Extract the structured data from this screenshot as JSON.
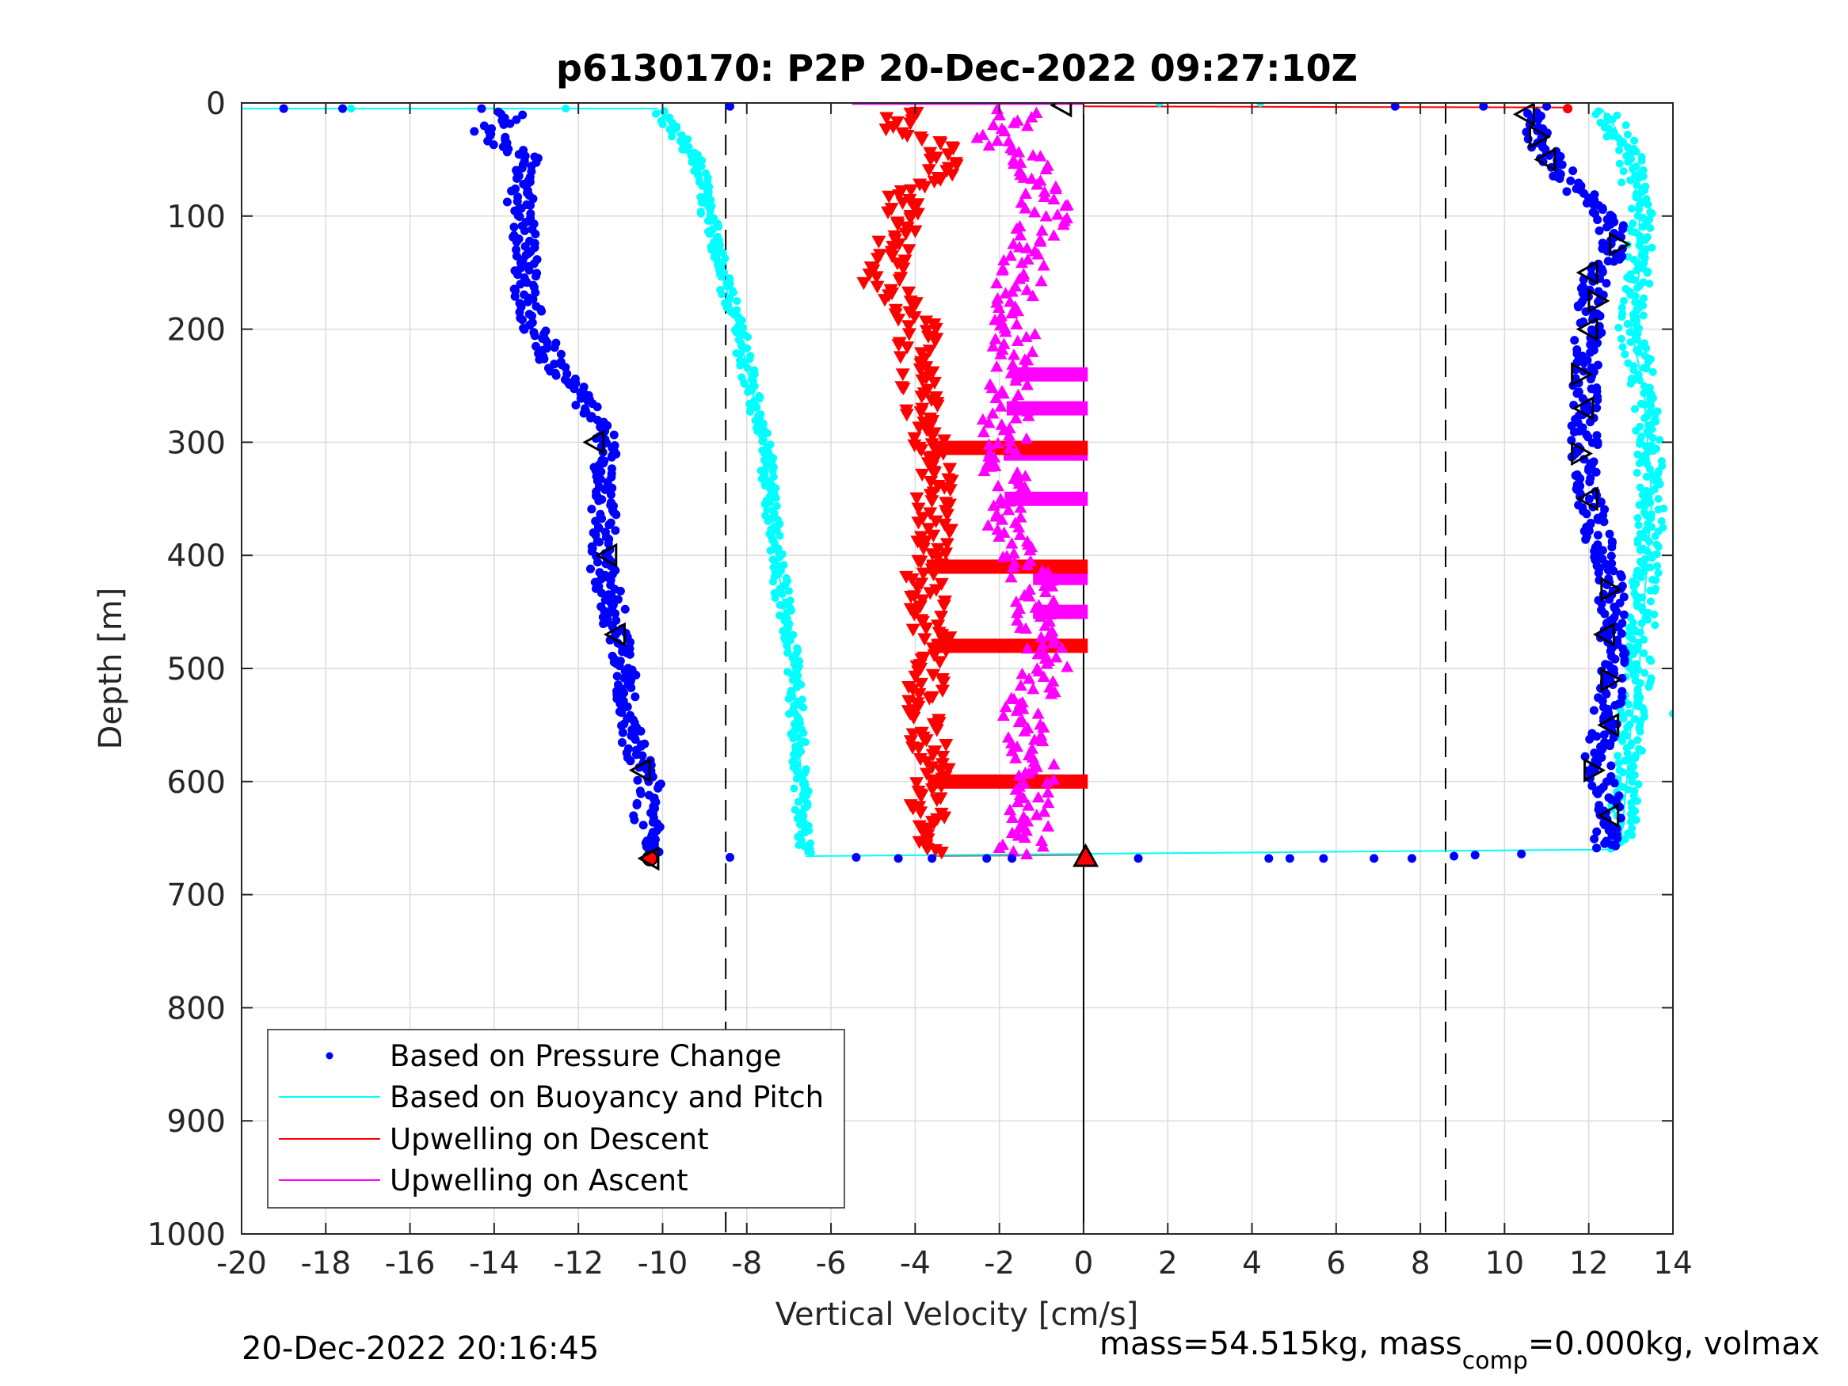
{
  "chart_data": {
    "type": "scatter",
    "title": "p6130170: P2P 20-Dec-2022 09:27:10Z",
    "xlabel": "Vertical Velocity [cm/s]",
    "ylabel": "Depth [m]",
    "xlim": [
      -20,
      14
    ],
    "ylim": [
      0,
      1000
    ],
    "y_reversed": true,
    "grid": true,
    "x_ticks": [
      "-20",
      "-18",
      "-16",
      "-14",
      "-12",
      "-10",
      "-8",
      "-6",
      "-4",
      "-2",
      "0",
      "2",
      "4",
      "6",
      "8",
      "10",
      "12",
      "14"
    ],
    "y_ticks": [
      "0",
      "100",
      "200",
      "300",
      "400",
      "500",
      "600",
      "700",
      "800",
      "900",
      "1000"
    ],
    "legend_position": "bottom-left",
    "reference_lines": {
      "zero_velocity": 0,
      "dashed_limits": [
        -8.5,
        8.6
      ]
    },
    "series": [
      {
        "name": "Based on Pressure Change",
        "color": "#0000ff",
        "marker": "dot",
        "descent": {
          "depth": [
            5,
            10,
            25,
            50,
            90,
            130,
            170,
            200,
            230,
            260,
            280,
            300,
            340,
            380,
            400,
            440,
            470,
            500,
            540,
            580,
            600,
            630,
            660
          ],
          "velocity": [
            -14.0,
            -13.5,
            -14.2,
            -13.2,
            -13.4,
            -13.2,
            -13.3,
            -13.0,
            -12.6,
            -11.9,
            -11.6,
            -11.3,
            -11.4,
            -11.4,
            -11.5,
            -11.2,
            -11.1,
            -10.8,
            -10.8,
            -10.6,
            -10.3,
            -10.4,
            -10.2
          ]
        },
        "ascent": {
          "depth": [
            10,
            30,
            50,
            80,
            100,
            130,
            160,
            200,
            240,
            280,
            320,
            350,
            380,
            420,
            460,
            500,
            540,
            580,
            620,
            650
          ],
          "velocity": [
            10.6,
            10.8,
            11.1,
            11.8,
            12.5,
            12.6,
            12.1,
            12.0,
            11.9,
            11.9,
            11.9,
            12.0,
            12.2,
            12.5,
            12.6,
            12.6,
            12.4,
            12.2,
            12.5,
            12.4
          ]
        },
        "surface_outliers": {
          "depth": [
            5,
            5,
            5,
            3,
            3,
            3,
            3
          ],
          "velocity": [
            -19.0,
            -17.6,
            -14.3,
            -8.4,
            7.4,
            9.5,
            11.0
          ]
        },
        "bottom_outliers": {
          "depth": [
            667,
            667,
            668,
            668,
            668,
            668,
            668,
            668,
            668,
            668,
            668,
            668,
            666,
            665,
            664
          ],
          "velocity": [
            -8.4,
            -5.4,
            -4.4,
            -3.6,
            -2.3,
            -1.7,
            1.3,
            4.4,
            4.9,
            5.7,
            6.9,
            7.8,
            8.8,
            9.3,
            10.4
          ]
        }
      },
      {
        "name": "Based on Buoyancy and Pitch",
        "color": "#00ffff",
        "marker": "line+dots",
        "descent": {
          "depth": [
            6,
            20,
            40,
            60,
            100,
            150,
            200,
            250,
            300,
            330,
            400,
            450,
            500,
            550,
            600,
            640,
            665
          ],
          "velocity": [
            -10.1,
            -9.8,
            -9.4,
            -9.1,
            -8.9,
            -8.6,
            -8.2,
            -7.9,
            -7.6,
            -7.5,
            -7.3,
            -7.1,
            -6.9,
            -6.8,
            -6.7,
            -6.7,
            -6.6
          ]
        },
        "ascent": {
          "depth": [
            5,
            20,
            50,
            100,
            150,
            200,
            250,
            300,
            350,
            400,
            450,
            500,
            550,
            600,
            640,
            660
          ],
          "velocity": [
            12.3,
            12.6,
            13.0,
            13.2,
            13.2,
            13.0,
            13.3,
            13.4,
            13.5,
            13.4,
            13.3,
            13.2,
            13.0,
            12.9,
            12.8,
            12.7
          ]
        },
        "surface_line": {
          "depth": [
            5,
            5
          ],
          "velocity": [
            -20,
            -10.1
          ]
        },
        "bottom_line": {
          "depth": [
            666,
            660
          ],
          "velocity": [
            -6.6,
            12.7
          ]
        }
      },
      {
        "name": "Upwelling on Descent",
        "color": "#ff0000",
        "marker": "triangle-down",
        "depth": [
          10,
          20,
          40,
          60,
          80,
          100,
          130,
          160,
          180,
          200,
          230,
          260,
          290,
          320,
          350,
          380,
          420,
          460,
          500,
          540,
          580,
          620,
          660
        ],
        "velocity": [
          -4.2,
          -4.5,
          -3.5,
          -3.4,
          -4.3,
          -4.2,
          -4.5,
          -4.8,
          -4.1,
          -3.9,
          -4.0,
          -3.9,
          -3.7,
          -3.5,
          -3.6,
          -3.5,
          -3.8,
          -3.6,
          -3.6,
          -3.9,
          -3.6,
          -3.8,
          -3.6
        ],
        "bands_depth": [
          305,
          410,
          480,
          600
        ],
        "band_to_velocity": 0.1
      },
      {
        "name": "Upwelling on Ascent",
        "color": "#ff00ff",
        "marker": "triangle-up",
        "depth": [
          10,
          30,
          60,
          100,
          140,
          180,
          220,
          260,
          300,
          340,
          380,
          420,
          460,
          500,
          540,
          580,
          620,
          660
        ],
        "velocity": [
          -1.5,
          -2.0,
          -1.0,
          -0.9,
          -1.4,
          -1.7,
          -1.6,
          -1.8,
          -1.9,
          -1.9,
          -1.8,
          -1.2,
          -1.2,
          -0.9,
          -1.5,
          -1.2,
          -1.2,
          -1.5
        ],
        "bands_depth": [
          240,
          270,
          310,
          350,
          420,
          450
        ],
        "band_to_velocity": 0.1
      }
    ],
    "pitch_markers": {
      "descent": {
        "depth": [
          300,
          400,
          470,
          590
        ],
        "velocity": [
          -11.6,
          -11.3,
          -11.1,
          -10.5
        ]
      },
      "ascent": {
        "depth": [
          10,
          30,
          50,
          125,
          150,
          175,
          200,
          240,
          270,
          310,
          350,
          430,
          470,
          510,
          550,
          590,
          630
        ],
        "velocity": [
          10.5,
          10.8,
          11.0,
          12.7,
          12.0,
          12.2,
          12.0,
          11.8,
          11.9,
          11.8,
          12.0,
          12.5,
          12.4,
          12.5,
          12.5,
          12.1,
          12.5
        ]
      },
      "surface": {
        "depth": 2,
        "velocity": -0.5
      }
    },
    "end_markers": {
      "red_dot": {
        "depth": 668,
        "velocity": -10.3
      },
      "red_triangle": {
        "depth": 668,
        "velocity": 0.05
      },
      "surface_red_dot": {
        "depth": 5,
        "velocity": 11.5
      }
    }
  },
  "legend": {
    "items": [
      {
        "label": "Based on Pressure Change"
      },
      {
        "label": "Based on Buoyancy and Pitch"
      },
      {
        "label": "Upwelling on Descent"
      },
      {
        "label": "Upwelling on Ascent"
      }
    ]
  },
  "footer": {
    "timestamp": "20-Dec-2022 20:16:45",
    "mass_prefix": "mass=54.515kg, mass",
    "mass_sub": "comp",
    "mass_suffix": "=0.000kg, volmax"
  }
}
